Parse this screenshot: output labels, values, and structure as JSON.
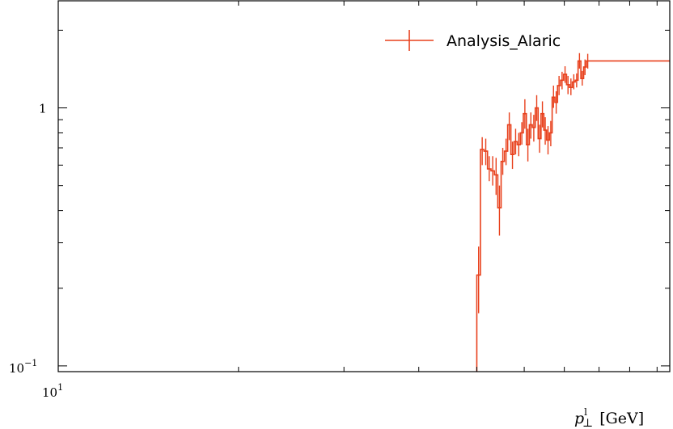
{
  "chart_data": {
    "type": "line",
    "style": "histogram-step-with-errorbars",
    "xlabel": "p_⊥^l [GeV]",
    "xlabel_main": "p",
    "xlabel_sup": "l",
    "xlabel_sub": "⊥",
    "xlabel_unit": "[GeV]",
    "ylabel": "",
    "xscale": "log",
    "yscale": "log",
    "xlim": [
      10,
      105
    ],
    "ylim": [
      0.095,
      2.6
    ],
    "x_tick_labels": [
      {
        "value": 10,
        "base": "10",
        "exp": "1"
      }
    ],
    "y_tick_labels": [
      {
        "value": 1,
        "text": "1"
      },
      {
        "value": 0.1,
        "base": "10",
        "exp": "−1"
      }
    ],
    "legend": {
      "position": "top-right",
      "entries": [
        "Analysis_Alaric"
      ]
    },
    "colors": {
      "series": "#e8401c",
      "frame": "#000000"
    },
    "series": [
      {
        "name": "Analysis_Alaric",
        "bins": [
          [
            50.0,
            50.7,
            0.225,
            0.16,
            0.29
          ],
          [
            50.7,
            51.4,
            0.69,
            0.6,
            0.77
          ],
          [
            51.4,
            52.1,
            0.68,
            0.6,
            0.76
          ],
          [
            52.1,
            52.8,
            0.58,
            0.52,
            0.65
          ],
          [
            52.8,
            53.5,
            0.57,
            0.5,
            0.65
          ],
          [
            53.5,
            54.2,
            0.55,
            0.46,
            0.64
          ],
          [
            54.2,
            54.9,
            0.41,
            0.32,
            0.5
          ],
          [
            54.9,
            55.6,
            0.62,
            0.55,
            0.7
          ],
          [
            55.6,
            56.3,
            0.68,
            0.6,
            0.76
          ],
          [
            56.3,
            57.0,
            0.86,
            0.75,
            0.96
          ],
          [
            57.0,
            57.7,
            0.66,
            0.58,
            0.74
          ],
          [
            57.7,
            58.4,
            0.74,
            0.66,
            0.83
          ],
          [
            58.4,
            59.1,
            0.72,
            0.65,
            0.8
          ],
          [
            59.1,
            59.8,
            0.8,
            0.72,
            0.88
          ],
          [
            59.8,
            60.5,
            0.95,
            0.83,
            1.08
          ],
          [
            60.5,
            61.2,
            0.72,
            0.62,
            0.83
          ],
          [
            61.2,
            61.9,
            0.86,
            0.76,
            0.96
          ],
          [
            61.9,
            62.6,
            0.84,
            0.74,
            0.94
          ],
          [
            62.6,
            63.3,
            1.0,
            0.89,
            1.12
          ],
          [
            63.3,
            64.0,
            0.76,
            0.67,
            0.86
          ],
          [
            64.0,
            64.7,
            0.95,
            0.84,
            1.06
          ],
          [
            64.7,
            65.4,
            0.82,
            0.72,
            0.92
          ],
          [
            65.4,
            66.1,
            0.75,
            0.66,
            0.85
          ],
          [
            66.1,
            66.8,
            0.8,
            0.71,
            0.89
          ],
          [
            66.8,
            67.5,
            1.1,
            1.0,
            1.22
          ],
          [
            67.5,
            68.2,
            1.05,
            0.95,
            1.16
          ],
          [
            68.2,
            69.0,
            1.22,
            1.12,
            1.33
          ],
          [
            69.0,
            69.8,
            1.28,
            1.18,
            1.38
          ],
          [
            69.8,
            70.6,
            1.35,
            1.25,
            1.45
          ],
          [
            70.6,
            71.4,
            1.23,
            1.13,
            1.33
          ],
          [
            71.4,
            72.2,
            1.2,
            1.12,
            1.3
          ],
          [
            72.2,
            73.0,
            1.26,
            1.18,
            1.35
          ],
          [
            73.0,
            73.8,
            1.28,
            1.2,
            1.36
          ],
          [
            73.8,
            74.6,
            1.52,
            1.42,
            1.63
          ],
          [
            74.6,
            75.4,
            1.3,
            1.22,
            1.39
          ],
          [
            75.4,
            76.2,
            1.44,
            1.34,
            1.54
          ],
          [
            76.2,
            77.0,
            1.52,
            1.42,
            1.62
          ]
        ],
        "bin_columns": [
          "x_low",
          "x_high",
          "y",
          "y_err_low",
          "y_err_high"
        ]
      }
    ]
  }
}
